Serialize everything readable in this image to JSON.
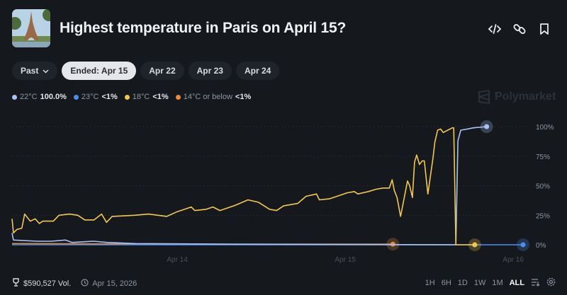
{
  "header": {
    "title": "Highest temperature in Paris on April 15?",
    "icons": [
      "code-icon",
      "link-icon",
      "bookmark-icon"
    ]
  },
  "date_pills": [
    {
      "label": "Past",
      "dropdown": true
    },
    {
      "label": "Ended: Apr 15",
      "selected": true
    },
    {
      "label": "Apr 22"
    },
    {
      "label": "Apr 23"
    },
    {
      "label": "Apr 24"
    }
  ],
  "legend": [
    {
      "name": "22°C",
      "value": "100.0%",
      "color": "#a9c2f5"
    },
    {
      "name": "23°C",
      "value": "<1%",
      "color": "#4c8ef0"
    },
    {
      "name": "18°C",
      "value": "<1%",
      "color": "#f2c94c"
    },
    {
      "name": "14°C or below",
      "value": "<1%",
      "color": "#ee8a3c"
    }
  ],
  "watermark": "Polymarket",
  "chart_data": {
    "type": "line",
    "x_range": [
      "2026-04-13T00:24",
      "2026-04-16T01:24"
    ],
    "x_ticks": [
      {
        "t": "2026-04-14T00:00",
        "label": "Apr 14"
      },
      {
        "t": "2026-04-15T00:00",
        "label": "Apr 15"
      },
      {
        "t": "2026-04-16T00:00",
        "label": "Apr 16"
      }
    ],
    "ylim": [
      0,
      100
    ],
    "y_ticks": [
      {
        "v": 100,
        "label": "100%"
      },
      {
        "v": 75,
        "label": "75%"
      },
      {
        "v": 50,
        "label": "50%"
      },
      {
        "v": 25,
        "label": "25%"
      },
      {
        "v": 0,
        "label": "0%"
      }
    ],
    "y_axis_side": "right",
    "grid": true,
    "series": [
      {
        "name": "14°C or below",
        "color": "#ee8a3c",
        "end_marker": true,
        "points": [
          [
            "2026-04-13T00:24",
            1
          ],
          [
            "2026-04-14T00:00",
            0.5
          ],
          [
            "2026-04-15T06:48",
            0.5
          ]
        ]
      },
      {
        "name": "23°C",
        "color": "#4c8ef0",
        "end_marker": true,
        "points": [
          [
            "2026-04-13T00:24",
            0
          ],
          [
            "2026-04-15T06:48",
            0
          ],
          [
            "2026-04-16T01:24",
            0
          ]
        ]
      },
      {
        "name": "22°C",
        "color": "#a9c2f5",
        "end_marker": true,
        "points": [
          [
            "2026-04-13T00:24",
            10
          ],
          [
            "2026-04-13T00:36",
            4
          ],
          [
            "2026-04-13T04:00",
            3
          ],
          [
            "2026-04-13T06:00",
            3
          ],
          [
            "2026-04-13T08:00",
            4
          ],
          [
            "2026-04-13T09:00",
            2
          ],
          [
            "2026-04-13T12:00",
            3
          ],
          [
            "2026-04-13T14:00",
            2
          ],
          [
            "2026-04-13T18:00",
            1
          ],
          [
            "2026-04-14T08:00",
            0.5
          ],
          [
            "2026-04-15T15:48",
            0
          ],
          [
            "2026-04-15T16:06",
            88
          ],
          [
            "2026-04-15T16:30",
            97
          ],
          [
            "2026-04-15T17:30",
            98
          ],
          [
            "2026-04-15T18:18",
            99
          ],
          [
            "2026-04-15T20:12",
            100
          ]
        ]
      },
      {
        "name": "18°C",
        "color": "#f2c94c",
        "end_marker": true,
        "points": [
          [
            "2026-04-13T00:24",
            22
          ],
          [
            "2026-04-13T00:36",
            10
          ],
          [
            "2026-04-13T01:06",
            13
          ],
          [
            "2026-04-13T01:48",
            14
          ],
          [
            "2026-04-13T02:12",
            26
          ],
          [
            "2026-04-13T03:00",
            20
          ],
          [
            "2026-04-13T03:42",
            22
          ],
          [
            "2026-04-13T04:18",
            18
          ],
          [
            "2026-04-13T04:48",
            20
          ],
          [
            "2026-04-13T06:18",
            20
          ],
          [
            "2026-04-13T07:06",
            25
          ],
          [
            "2026-04-13T08:36",
            26
          ],
          [
            "2026-04-13T09:48",
            25
          ],
          [
            "2026-04-13T10:48",
            21
          ],
          [
            "2026-04-13T12:06",
            21
          ],
          [
            "2026-04-13T13:12",
            26
          ],
          [
            "2026-04-13T13:54",
            19
          ],
          [
            "2026-04-13T14:42",
            24
          ],
          [
            "2026-04-13T17:54",
            25
          ],
          [
            "2026-04-13T19:54",
            26
          ],
          [
            "2026-04-13T22:30",
            24
          ],
          [
            "2026-04-14T00:00",
            28
          ],
          [
            "2026-04-14T00:30",
            29
          ],
          [
            "2026-04-14T02:00",
            32
          ],
          [
            "2026-04-14T02:30",
            29
          ],
          [
            "2026-04-14T04:06",
            30
          ],
          [
            "2026-04-14T05:06",
            32
          ],
          [
            "2026-04-14T06:06",
            29
          ],
          [
            "2026-04-14T08:06",
            33
          ],
          [
            "2026-04-14T08:54",
            35
          ],
          [
            "2026-04-14T10:06",
            38
          ],
          [
            "2026-04-14T11:36",
            36
          ],
          [
            "2026-04-14T13:12",
            30
          ],
          [
            "2026-04-14T14:12",
            29
          ],
          [
            "2026-04-14T15:12",
            33
          ],
          [
            "2026-04-14T17:12",
            35
          ],
          [
            "2026-04-14T18:24",
            41
          ],
          [
            "2026-04-14T19:54",
            43
          ],
          [
            "2026-04-14T20:18",
            38
          ],
          [
            "2026-04-14T21:48",
            39
          ],
          [
            "2026-04-14T23:18",
            42
          ],
          [
            "2026-04-15T00:18",
            44
          ],
          [
            "2026-04-15T01:18",
            45
          ],
          [
            "2026-04-15T01:48",
            43
          ],
          [
            "2026-04-15T03:18",
            45
          ],
          [
            "2026-04-15T04:24",
            47
          ],
          [
            "2026-04-15T05:24",
            48
          ],
          [
            "2026-04-15T06:18",
            48
          ],
          [
            "2026-04-15T06:42",
            55
          ],
          [
            "2026-04-15T07:00",
            46
          ],
          [
            "2026-04-15T07:24",
            40
          ],
          [
            "2026-04-15T07:54",
            24
          ],
          [
            "2026-04-15T08:18",
            36
          ],
          [
            "2026-04-15T08:54",
            54
          ],
          [
            "2026-04-15T09:12",
            50
          ],
          [
            "2026-04-15T09:36",
            40
          ],
          [
            "2026-04-15T09:54",
            70
          ],
          [
            "2026-04-15T10:12",
            76
          ],
          [
            "2026-04-15T10:36",
            68
          ],
          [
            "2026-04-15T11:00",
            71
          ],
          [
            "2026-04-15T11:18",
            71
          ],
          [
            "2026-04-15T11:48",
            43
          ],
          [
            "2026-04-15T12:30",
            72
          ],
          [
            "2026-04-15T12:48",
            87
          ],
          [
            "2026-04-15T13:12",
            97
          ],
          [
            "2026-04-15T13:36",
            98
          ],
          [
            "2026-04-15T14:00",
            95
          ],
          [
            "2026-04-15T15:18",
            99
          ],
          [
            "2026-04-15T15:30",
            99
          ],
          [
            "2026-04-15T15:48",
            0
          ],
          [
            "2026-04-15T18:30",
            0
          ]
        ]
      }
    ]
  },
  "footer": {
    "volume": "$590,527 Vol.",
    "date": "Apr 15, 2026"
  },
  "ranges": [
    {
      "label": "1H"
    },
    {
      "label": "6H"
    },
    {
      "label": "1D"
    },
    {
      "label": "1W"
    },
    {
      "label": "1M"
    },
    {
      "label": "ALL",
      "active": true
    }
  ]
}
